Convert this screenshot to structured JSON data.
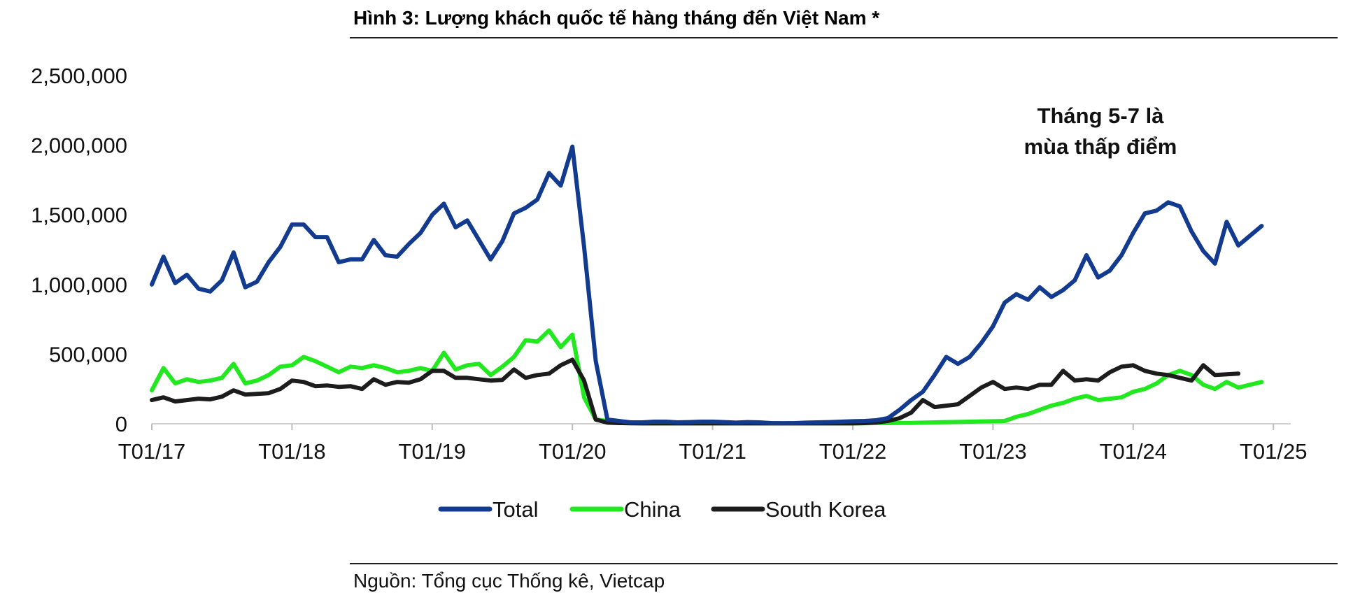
{
  "chart_data": {
    "type": "line",
    "title": "Hình 3: Lượng khách quốc tế hàng tháng đến Việt Nam *",
    "source": "Nguồn: Tổng cục Thống kê, Vietcap",
    "annotation": [
      "Tháng 5-7 là",
      "mùa thấp điểm"
    ],
    "x_start": "2017-01",
    "x_step_months": 1,
    "x_ticks": [
      "T01/17",
      "T01/18",
      "T01/19",
      "T01/20",
      "T01/21",
      "T01/22",
      "T01/23",
      "T01/24",
      "T01/25"
    ],
    "y_ticks": [
      "0",
      "500,000",
      "1,000,000",
      "1,500,000",
      "2,000,000",
      "2,500,000"
    ],
    "ylim": [
      0,
      2500000
    ],
    "legend_position": "bottom",
    "grid": false,
    "series": [
      {
        "name": "Total",
        "color": "#123a8f",
        "values": [
          1000000,
          1200000,
          1010000,
          1070000,
          970000,
          950000,
          1030000,
          1230000,
          980000,
          1020000,
          1160000,
          1270000,
          1430000,
          1430000,
          1340000,
          1340000,
          1160000,
          1180000,
          1180000,
          1320000,
          1210000,
          1200000,
          1290000,
          1370000,
          1500000,
          1580000,
          1410000,
          1460000,
          1320000,
          1180000,
          1310000,
          1510000,
          1550000,
          1610000,
          1800000,
          1710000,
          1990000,
          1270000,
          450000,
          30000,
          20000,
          10000,
          10000,
          15000,
          15000,
          10000,
          12000,
          15000,
          15000,
          12000,
          8000,
          12000,
          10000,
          5000,
          4000,
          5000,
          8000,
          10000,
          12000,
          15000,
          18000,
          20000,
          25000,
          40000,
          100000,
          170000,
          230000,
          350000,
          480000,
          430000,
          480000,
          580000,
          700000,
          870000,
          930000,
          890000,
          980000,
          910000,
          960000,
          1030000,
          1210000,
          1050000,
          1100000,
          1210000,
          1370000,
          1510000,
          1530000,
          1590000,
          1560000,
          1380000,
          1240000,
          1150000,
          1450000,
          1280000,
          1350000,
          1420000
        ]
      },
      {
        "name": "China",
        "color": "#22e81f",
        "values": [
          240000,
          400000,
          290000,
          320000,
          300000,
          310000,
          330000,
          430000,
          290000,
          310000,
          350000,
          410000,
          420000,
          480000,
          450000,
          410000,
          370000,
          410000,
          400000,
          420000,
          400000,
          370000,
          380000,
          400000,
          380000,
          510000,
          390000,
          420000,
          430000,
          350000,
          410000,
          480000,
          600000,
          590000,
          670000,
          550000,
          640000,
          190000,
          30000,
          20000,
          10000,
          5000,
          3000,
          3000,
          3000,
          3000,
          3000,
          3000,
          3000,
          3000,
          3000,
          3000,
          3000,
          3000,
          3000,
          3000,
          3000,
          3000,
          3000,
          3000,
          3000,
          4000,
          5000,
          5000,
          6000,
          6000,
          8000,
          10000,
          12000,
          13000,
          15000,
          17000,
          18000,
          20000,
          50000,
          70000,
          100000,
          130000,
          150000,
          180000,
          200000,
          170000,
          180000,
          190000,
          230000,
          250000,
          290000,
          350000,
          380000,
          350000,
          280000,
          250000,
          300000,
          260000,
          280000,
          300000
        ]
      },
      {
        "name": "South Korea",
        "color": "#1c1c1c",
        "values": [
          170000,
          190000,
          160000,
          170000,
          180000,
          175000,
          195000,
          240000,
          210000,
          215000,
          220000,
          250000,
          310000,
          300000,
          270000,
          275000,
          265000,
          270000,
          250000,
          320000,
          280000,
          300000,
          295000,
          320000,
          380000,
          380000,
          330000,
          330000,
          320000,
          310000,
          315000,
          390000,
          330000,
          350000,
          360000,
          420000,
          460000,
          310000,
          30000,
          8000,
          5000,
          4000,
          3000,
          3000,
          3000,
          3000,
          3000,
          3000,
          3000,
          3000,
          3000,
          3000,
          3000,
          3000,
          3000,
          3000,
          3000,
          3000,
          3000,
          3000,
          3000,
          5000,
          10000,
          20000,
          40000,
          80000,
          170000,
          120000,
          130000,
          140000,
          200000,
          260000,
          300000,
          250000,
          260000,
          250000,
          280000,
          280000,
          380000,
          310000,
          320000,
          310000,
          370000,
          410000,
          420000,
          380000,
          360000,
          350000,
          330000,
          310000,
          420000,
          350000,
          355000,
          360000
        ]
      }
    ]
  }
}
